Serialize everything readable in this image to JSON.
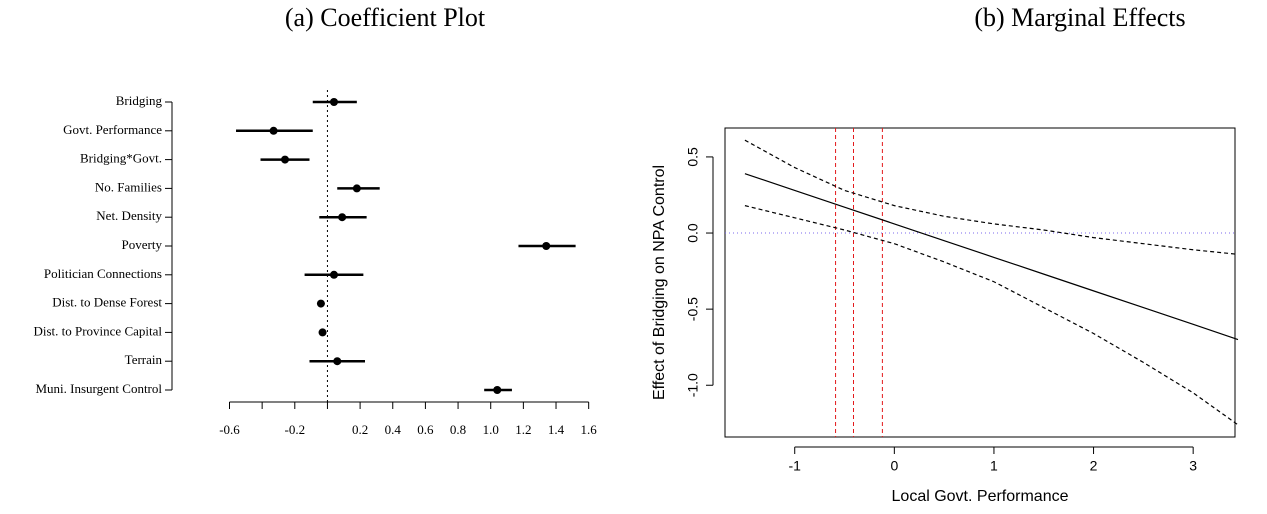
{
  "chart_data": [
    {
      "type": "coef",
      "title": "(a) Coefficient Plot",
      "categories": [
        "Bridging",
        "Govt. Performance",
        "Bridging*Govt.",
        "No. Families",
        "Net. Density",
        "Poverty",
        "Politician Connections",
        "Dist. to Dense Forest",
        "Dist. to Province Capital",
        "Terrain",
        "Muni. Insurgent Control"
      ],
      "values": [
        0.04,
        -0.33,
        -0.26,
        0.18,
        0.09,
        1.34,
        0.04,
        -0.04,
        -0.03,
        0.06,
        1.04
      ],
      "lower": [
        -0.09,
        -0.56,
        -0.41,
        0.06,
        -0.05,
        1.17,
        -0.14,
        -0.05,
        -0.04,
        -0.11,
        0.96
      ],
      "upper": [
        0.18,
        -0.09,
        -0.11,
        0.32,
        0.24,
        1.52,
        0.22,
        -0.03,
        -0.02,
        0.23,
        1.13
      ],
      "color": "#000000",
      "reference_line": 0,
      "xlim": [
        -0.75,
        1.7
      ],
      "xticks": [
        -0.6,
        {
          "value": -0.4,
          "label": null
        },
        -0.2,
        {
          "value": 0,
          "label": null
        },
        0.2,
        0.4,
        0.6,
        0.8,
        {
          "value": 1,
          "label": "1.0"
        },
        1.2,
        1.4,
        1.6
      ]
    },
    {
      "type": "line",
      "title": "(b) Marginal Effects",
      "xlabel": "Local Govt. Performance",
      "ylabel": "Effect of Bridging on NPA Control",
      "x": [
        -1.5,
        -1,
        -0.5,
        0,
        0.5,
        1,
        1.5,
        2,
        2.5,
        3,
        3.45
      ],
      "series": [
        {
          "style": "solid",
          "color": "#000000",
          "values": [
            0.39,
            0.28,
            0.17,
            0.06,
            -0.05,
            -0.16,
            -0.27,
            -0.38,
            -0.49,
            -0.6,
            -0.7
          ]
        },
        {
          "style": "dashed",
          "color": "#000000",
          "values": [
            0.61,
            0.43,
            0.28,
            0.18,
            0.11,
            0.06,
            0.02,
            -0.03,
            -0.07,
            -0.11,
            -0.14
          ]
        },
        {
          "style": "dashed",
          "color": "#000000",
          "values": [
            0.18,
            0.1,
            0.02,
            -0.07,
            -0.19,
            -0.32,
            -0.49,
            -0.66,
            -0.85,
            -1.05,
            -1.26
          ]
        }
      ],
      "vlines": [
        -0.59,
        -0.41,
        -0.12
      ],
      "vline_color": "#e31a1c",
      "hline": 0,
      "hline_color": "#7b68ee",
      "xlim": [
        -1.7,
        3.42
      ],
      "ylim": [
        -1.34,
        0.69
      ],
      "xticks": [
        -1,
        0,
        1,
        2,
        3
      ],
      "yticks": [
        {
          "value": -1,
          "label": "-1.0"
        },
        {
          "value": -0.5,
          "label": "-0.5"
        },
        {
          "value": 0,
          "label": "0.0"
        },
        0.5
      ]
    }
  ]
}
